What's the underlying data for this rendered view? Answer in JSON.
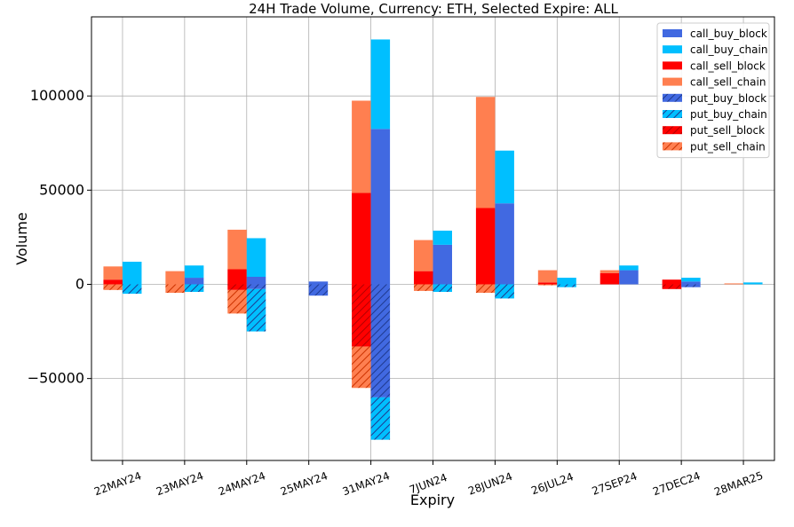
{
  "chart_data": {
    "type": "bar",
    "title": "24H Trade Volume, Currency: ETH, Selected Expire: ALL",
    "xlabel": "Expiry",
    "ylabel": "Volume",
    "ylim": [
      -93500,
      142000
    ],
    "yticks": [
      -50000,
      0,
      50000,
      100000
    ],
    "ytick_labels": [
      "−50000",
      "0",
      "50000",
      "100000"
    ],
    "grid": true,
    "legend_position": "top-right",
    "categories": [
      "22MAY24",
      "23MAY24",
      "24MAY24",
      "25MAY24",
      "31MAY24",
      "7JUN24",
      "28JUN24",
      "26JUL24",
      "27SEP24",
      "27DEC24",
      "28MAR25"
    ],
    "series": [
      {
        "name": "call_buy_block",
        "color": "#4169e1",
        "hatch": false,
        "group": "buy",
        "values": [
          0,
          3500,
          4000,
          1500,
          82500,
          21000,
          43000,
          0,
          7500,
          1500,
          0
        ]
      },
      {
        "name": "call_buy_chain",
        "color": "#00bfff",
        "hatch": false,
        "group": "buy",
        "values": [
          12000,
          6500,
          20500,
          0,
          47500,
          7500,
          28000,
          3500,
          2500,
          2000,
          1000
        ]
      },
      {
        "name": "call_sell_block",
        "color": "#ff0000",
        "hatch": false,
        "group": "sell",
        "values": [
          2500,
          0,
          8000,
          0,
          48500,
          7000,
          40500,
          1000,
          6000,
          2500,
          0
        ]
      },
      {
        "name": "call_sell_chain",
        "color": "#ff7f50",
        "hatch": false,
        "group": "sell",
        "values": [
          7000,
          7000,
          21000,
          0,
          49000,
          16500,
          59000,
          6500,
          1500,
          0,
          500
        ]
      },
      {
        "name": "put_buy_block",
        "color": "#4169e1",
        "hatch": true,
        "group": "buy",
        "values": [
          0,
          0,
          -2500,
          -6000,
          -60000,
          0,
          0,
          0,
          0,
          -1500,
          0
        ]
      },
      {
        "name": "put_buy_chain",
        "color": "#00bfff",
        "hatch": true,
        "group": "buy",
        "values": [
          -5000,
          -4000,
          -22500,
          0,
          -22500,
          -4000,
          -7500,
          -1500,
          0,
          0,
          0
        ]
      },
      {
        "name": "put_sell_block",
        "color": "#ff0000",
        "hatch": true,
        "group": "sell",
        "values": [
          0,
          0,
          -3000,
          0,
          -33000,
          0,
          0,
          0,
          0,
          -2500,
          0
        ]
      },
      {
        "name": "put_sell_chain",
        "color": "#ff7f50",
        "hatch": true,
        "group": "sell",
        "values": [
          -3000,
          -4500,
          -12500,
          0,
          -22000,
          -3500,
          -4500,
          -500,
          0,
          0,
          0
        ]
      }
    ]
  }
}
